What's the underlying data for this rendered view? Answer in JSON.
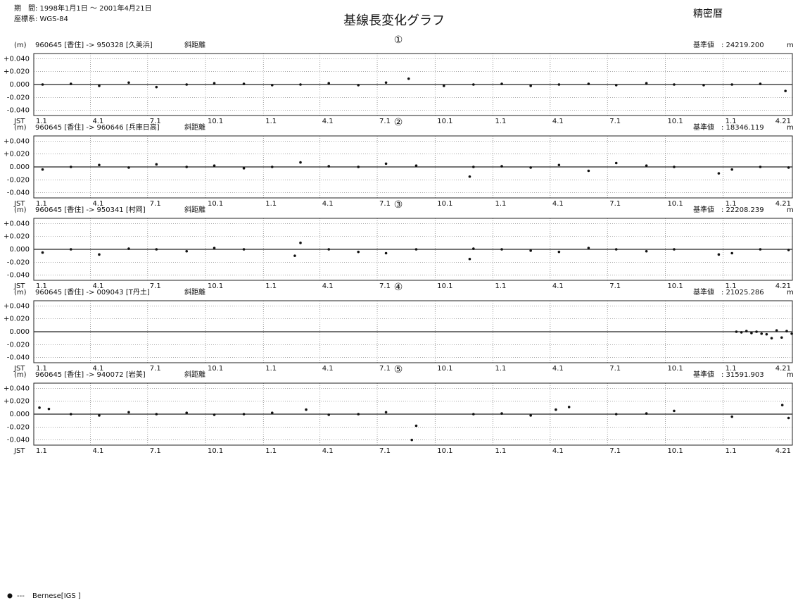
{
  "header": {
    "period": "期　間: 1998年1月1日 ～ 2001年4月21日",
    "crs": "座標系: WGS-84",
    "title": "基線長変化グラフ",
    "orbit": "精密暦",
    "legend": "---"
  },
  "chart_data": [
    {
      "type": "scatter",
      "number": "①",
      "unit": "(m)",
      "baseline": "960645 [香住] -> 950328 [久美浜]",
      "measure": "斜距離",
      "reference": "基準値　: 24219.200",
      "reference_unit": "m",
      "x_axis_label": "JST",
      "x": [
        "1998-01-15",
        "1998-03-01",
        "1998-04-15",
        "1998-06-01",
        "1998-07-15",
        "1998-09-01",
        "1998-10-15",
        "1998-12-01",
        "1999-01-15",
        "1999-03-01",
        "1999-04-15",
        "1999-06-01",
        "1999-07-15",
        "1999-08-20",
        "1999-10-15",
        "1999-12-01",
        "2000-01-15",
        "2000-03-01",
        "2000-04-15",
        "2000-06-01",
        "2000-07-15",
        "2000-09-01",
        "2000-10-15",
        "2000-12-01",
        "2001-01-15",
        "2001-03-01",
        "2001-04-10"
      ],
      "series": [
        {
          "name": "Bernese[IGS  ]",
          "color": "#111111",
          "values": [
            0.0,
            0.001,
            -0.002,
            0.003,
            -0.004,
            0.0,
            0.002,
            0.001,
            -0.001,
            0.0,
            0.002,
            -0.001,
            0.003,
            0.009,
            -0.002,
            0.0,
            0.001,
            -0.002,
            0.0,
            0.001,
            -0.001,
            0.002,
            0.0,
            -0.001,
            0.0,
            0.001,
            -0.01
          ]
        }
      ],
      "xlim": [
        "1998-01-01",
        "2001-04-21"
      ],
      "xticks": [
        {
          "value": "1998-01-01",
          "label": "1.1"
        },
        {
          "value": "1998-04-01",
          "label": "4.1"
        },
        {
          "value": "1998-07-01",
          "label": "7.1"
        },
        {
          "value": "1998-10-01",
          "label": "10.1"
        },
        {
          "value": "1999-01-01",
          "label": "1.1"
        },
        {
          "value": "1999-04-01",
          "label": "4.1"
        },
        {
          "value": "1999-07-01",
          "label": "7.1"
        },
        {
          "value": "1999-10-01",
          "label": "10.1"
        },
        {
          "value": "2000-01-01",
          "label": "1.1"
        },
        {
          "value": "2000-04-01",
          "label": "4.1"
        },
        {
          "value": "2000-07-01",
          "label": "7.1"
        },
        {
          "value": "2000-10-01",
          "label": "10.1"
        },
        {
          "value": "2001-01-01",
          "label": "1.1"
        },
        {
          "value": "2001-04-21",
          "label": "4.21"
        }
      ],
      "ylim": [
        -0.048,
        0.048
      ],
      "yticks": [
        {
          "value": 0.04,
          "label": "+0.040"
        },
        {
          "value": 0.02,
          "label": "+0.020"
        },
        {
          "value": 0,
          "label": "0.000"
        },
        {
          "value": -0.02,
          "label": "-0.020"
        },
        {
          "value": -0.04,
          "label": "-0.040"
        }
      ],
      "grid": true
    },
    {
      "type": "scatter",
      "number": "②",
      "unit": "(m)",
      "baseline": "960645 [香住] -> 960646 [兵庫日高]",
      "measure": "斜距離",
      "reference": "基準値　: 18346.119",
      "reference_unit": "m",
      "x_axis_label": "JST",
      "x": [
        "1998-01-15",
        "1998-03-01",
        "1998-04-15",
        "1998-06-01",
        "1998-07-15",
        "1998-09-01",
        "1998-10-15",
        "1998-12-01",
        "1999-01-15",
        "1999-03-01",
        "1999-04-15",
        "1999-06-01",
        "1999-07-15",
        "1999-09-01",
        "1999-11-25",
        "1999-12-01",
        "2000-01-15",
        "2000-03-01",
        "2000-04-15",
        "2000-06-01",
        "2000-07-15",
        "2000-09-01",
        "2000-10-15",
        "2000-12-25",
        "2001-01-15",
        "2001-03-01",
        "2001-04-15"
      ],
      "series": [
        {
          "name": "Bernese[IGS  ]",
          "color": "#111111",
          "values": [
            -0.004,
            0.0,
            0.003,
            -0.001,
            0.004,
            0.0,
            0.002,
            -0.002,
            0.0,
            0.007,
            0.001,
            0.0,
            0.005,
            0.002,
            -0.015,
            0.0,
            0.001,
            -0.001,
            0.003,
            -0.006,
            0.006,
            0.002,
            0.0,
            -0.01,
            -0.004,
            0.0,
            -0.001
          ]
        }
      ],
      "xlim": [
        "1998-01-01",
        "2001-04-21"
      ],
      "xticks": [
        {
          "value": "1998-01-01",
          "label": "1.1"
        },
        {
          "value": "1998-04-01",
          "label": "4.1"
        },
        {
          "value": "1998-07-01",
          "label": "7.1"
        },
        {
          "value": "1998-10-01",
          "label": "10.1"
        },
        {
          "value": "1999-01-01",
          "label": "1.1"
        },
        {
          "value": "1999-04-01",
          "label": "4.1"
        },
        {
          "value": "1999-07-01",
          "label": "7.1"
        },
        {
          "value": "1999-10-01",
          "label": "10.1"
        },
        {
          "value": "2000-01-01",
          "label": "1.1"
        },
        {
          "value": "2000-04-01",
          "label": "4.1"
        },
        {
          "value": "2000-07-01",
          "label": "7.1"
        },
        {
          "value": "2000-10-01",
          "label": "10.1"
        },
        {
          "value": "2001-01-01",
          "label": "1.1"
        },
        {
          "value": "2001-04-21",
          "label": "4.21"
        }
      ],
      "ylim": [
        -0.048,
        0.048
      ],
      "yticks": [
        {
          "value": 0.04,
          "label": "+0.040"
        },
        {
          "value": 0.02,
          "label": "+0.020"
        },
        {
          "value": 0,
          "label": "0.000"
        },
        {
          "value": -0.02,
          "label": "-0.020"
        },
        {
          "value": -0.04,
          "label": "-0.040"
        }
      ],
      "grid": true
    },
    {
      "type": "scatter",
      "number": "③",
      "unit": "(m)",
      "baseline": "960645 [香住] -> 950341 [村岡]",
      "measure": "斜距離",
      "reference": "基準値　: 22208.239",
      "reference_unit": "m",
      "x_axis_label": "JST",
      "x": [
        "1998-01-15",
        "1998-03-01",
        "1998-04-15",
        "1998-06-01",
        "1998-07-15",
        "1998-09-01",
        "1998-10-15",
        "1998-12-01",
        "1999-02-20",
        "1999-03-01",
        "1999-04-15",
        "1999-06-01",
        "1999-07-15",
        "1999-09-01",
        "1999-11-25",
        "1999-12-01",
        "2000-01-15",
        "2000-03-01",
        "2000-04-15",
        "2000-06-01",
        "2000-07-15",
        "2000-09-01",
        "2000-10-15",
        "2000-12-25",
        "2001-01-15",
        "2001-03-01",
        "2001-04-15"
      ],
      "series": [
        {
          "name": "Bernese[IGS  ]",
          "color": "#111111",
          "values": [
            -0.005,
            0.0,
            -0.008,
            0.001,
            0.0,
            -0.003,
            0.002,
            0.0,
            -0.01,
            0.01,
            0.0,
            -0.004,
            -0.006,
            0.0,
            -0.015,
            0.001,
            0.0,
            -0.002,
            -0.004,
            0.002,
            0.0,
            -0.003,
            0.0,
            -0.008,
            -0.006,
            0.0,
            -0.001
          ]
        }
      ],
      "xlim": [
        "1998-01-01",
        "2001-04-21"
      ],
      "xticks": [
        {
          "value": "1998-01-01",
          "label": "1.1"
        },
        {
          "value": "1998-04-01",
          "label": "4.1"
        },
        {
          "value": "1998-07-01",
          "label": "7.1"
        },
        {
          "value": "1998-10-01",
          "label": "10.1"
        },
        {
          "value": "1999-01-01",
          "label": "1.1"
        },
        {
          "value": "1999-04-01",
          "label": "4.1"
        },
        {
          "value": "1999-07-01",
          "label": "7.1"
        },
        {
          "value": "1999-10-01",
          "label": "10.1"
        },
        {
          "value": "2000-01-01",
          "label": "1.1"
        },
        {
          "value": "2000-04-01",
          "label": "4.1"
        },
        {
          "value": "2000-07-01",
          "label": "7.1"
        },
        {
          "value": "2000-10-01",
          "label": "10.1"
        },
        {
          "value": "2001-01-01",
          "label": "1.1"
        },
        {
          "value": "2001-04-21",
          "label": "4.21"
        }
      ],
      "ylim": [
        -0.048,
        0.048
      ],
      "yticks": [
        {
          "value": 0.04,
          "label": "+0.040"
        },
        {
          "value": 0.02,
          "label": "+0.020"
        },
        {
          "value": 0,
          "label": "0.000"
        },
        {
          "value": -0.02,
          "label": "-0.020"
        },
        {
          "value": -0.04,
          "label": "-0.040"
        }
      ],
      "grid": true
    },
    {
      "type": "scatter",
      "number": "④",
      "unit": "(m)",
      "baseline": "960645 [香住] -> 009043 [T丹土]",
      "measure": "斜距離",
      "reference": "基準値　: 21025.286",
      "reference_unit": "m",
      "x_axis_label": "JST",
      "x": [
        "2001-01-22",
        "2001-01-30",
        "2001-02-07",
        "2001-02-15",
        "2001-02-23",
        "2001-03-03",
        "2001-03-11",
        "2001-03-19",
        "2001-03-27",
        "2001-04-04",
        "2001-04-12",
        "2001-04-20"
      ],
      "series": [
        {
          "name": "Bernese[IGS  ]",
          "color": "#111111",
          "values": [
            0.0,
            -0.001,
            0.001,
            -0.002,
            0.0,
            -0.003,
            -0.004,
            -0.01,
            0.002,
            -0.009,
            0.001,
            -0.003
          ]
        }
      ],
      "xlim": [
        "1998-01-01",
        "2001-04-21"
      ],
      "xticks": [
        {
          "value": "1998-01-01",
          "label": "1.1"
        },
        {
          "value": "1998-04-01",
          "label": "4.1"
        },
        {
          "value": "1998-07-01",
          "label": "7.1"
        },
        {
          "value": "1998-10-01",
          "label": "10.1"
        },
        {
          "value": "1999-01-01",
          "label": "1.1"
        },
        {
          "value": "1999-04-01",
          "label": "4.1"
        },
        {
          "value": "1999-07-01",
          "label": "7.1"
        },
        {
          "value": "1999-10-01",
          "label": "10.1"
        },
        {
          "value": "2000-01-01",
          "label": "1.1"
        },
        {
          "value": "2000-04-01",
          "label": "4.1"
        },
        {
          "value": "2000-07-01",
          "label": "7.1"
        },
        {
          "value": "2000-10-01",
          "label": "10.1"
        },
        {
          "value": "2001-01-01",
          "label": "1.1"
        },
        {
          "value": "2001-04-21",
          "label": "4.21"
        }
      ],
      "ylim": [
        -0.048,
        0.048
      ],
      "yticks": [
        {
          "value": 0.04,
          "label": "+0.040"
        },
        {
          "value": 0.02,
          "label": "+0.020"
        },
        {
          "value": 0,
          "label": "0.000"
        },
        {
          "value": -0.02,
          "label": "-0.020"
        },
        {
          "value": -0.04,
          "label": "-0.040"
        }
      ],
      "grid": true
    },
    {
      "type": "scatter",
      "number": "⑤",
      "unit": "(m)",
      "baseline": "960645 [香住] -> 940072 [岩美]",
      "measure": "斜距離",
      "reference": "基準値　: 31591.903",
      "reference_unit": "m",
      "x_axis_label": "JST",
      "x": [
        "1998-01-10",
        "1998-01-25",
        "1998-03-01",
        "1998-04-15",
        "1998-06-01",
        "1998-07-15",
        "1998-09-01",
        "1998-10-15",
        "1998-12-01",
        "1999-01-15",
        "1999-03-10",
        "1999-04-15",
        "1999-06-01",
        "1999-07-15",
        "1999-08-25",
        "1999-09-01",
        "1999-12-01",
        "2000-01-15",
        "2000-03-01",
        "2000-04-10",
        "2000-05-01",
        "2000-07-15",
        "2000-09-01",
        "2000-10-15",
        "2001-01-15",
        "2001-04-05",
        "2001-04-15"
      ],
      "series": [
        {
          "name": "Bernese[IGS  ]",
          "color": "#111111",
          "values": [
            0.01,
            0.008,
            0.0,
            -0.002,
            0.003,
            0.0,
            0.002,
            -0.001,
            0.0,
            0.002,
            0.007,
            -0.001,
            0.0,
            0.003,
            -0.04,
            -0.018,
            0.0,
            0.001,
            -0.002,
            0.007,
            0.011,
            0.0,
            0.001,
            0.005,
            -0.004,
            0.014,
            -0.006
          ]
        }
      ],
      "xlim": [
        "1998-01-01",
        "2001-04-21"
      ],
      "xticks": [
        {
          "value": "1998-01-01",
          "label": "1.1"
        },
        {
          "value": "1998-04-01",
          "label": "4.1"
        },
        {
          "value": "1998-07-01",
          "label": "7.1"
        },
        {
          "value": "1998-10-01",
          "label": "10.1"
        },
        {
          "value": "1999-01-01",
          "label": "1.1"
        },
        {
          "value": "1999-04-01",
          "label": "4.1"
        },
        {
          "value": "1999-07-01",
          "label": "7.1"
        },
        {
          "value": "1999-10-01",
          "label": "10.1"
        },
        {
          "value": "2000-01-01",
          "label": "1.1"
        },
        {
          "value": "2000-04-01",
          "label": "4.1"
        },
        {
          "value": "2000-07-01",
          "label": "7.1"
        },
        {
          "value": "2000-10-01",
          "label": "10.1"
        },
        {
          "value": "2001-01-01",
          "label": "1.1"
        },
        {
          "value": "2001-04-21",
          "label": "4.21"
        }
      ],
      "ylim": [
        -0.048,
        0.048
      ],
      "yticks": [
        {
          "value": 0.04,
          "label": "+0.040"
        },
        {
          "value": 0.02,
          "label": "+0.020"
        },
        {
          "value": 0,
          "label": "0.000"
        },
        {
          "value": -0.02,
          "label": "-0.020"
        },
        {
          "value": -0.04,
          "label": "-0.040"
        }
      ],
      "grid": true
    }
  ]
}
